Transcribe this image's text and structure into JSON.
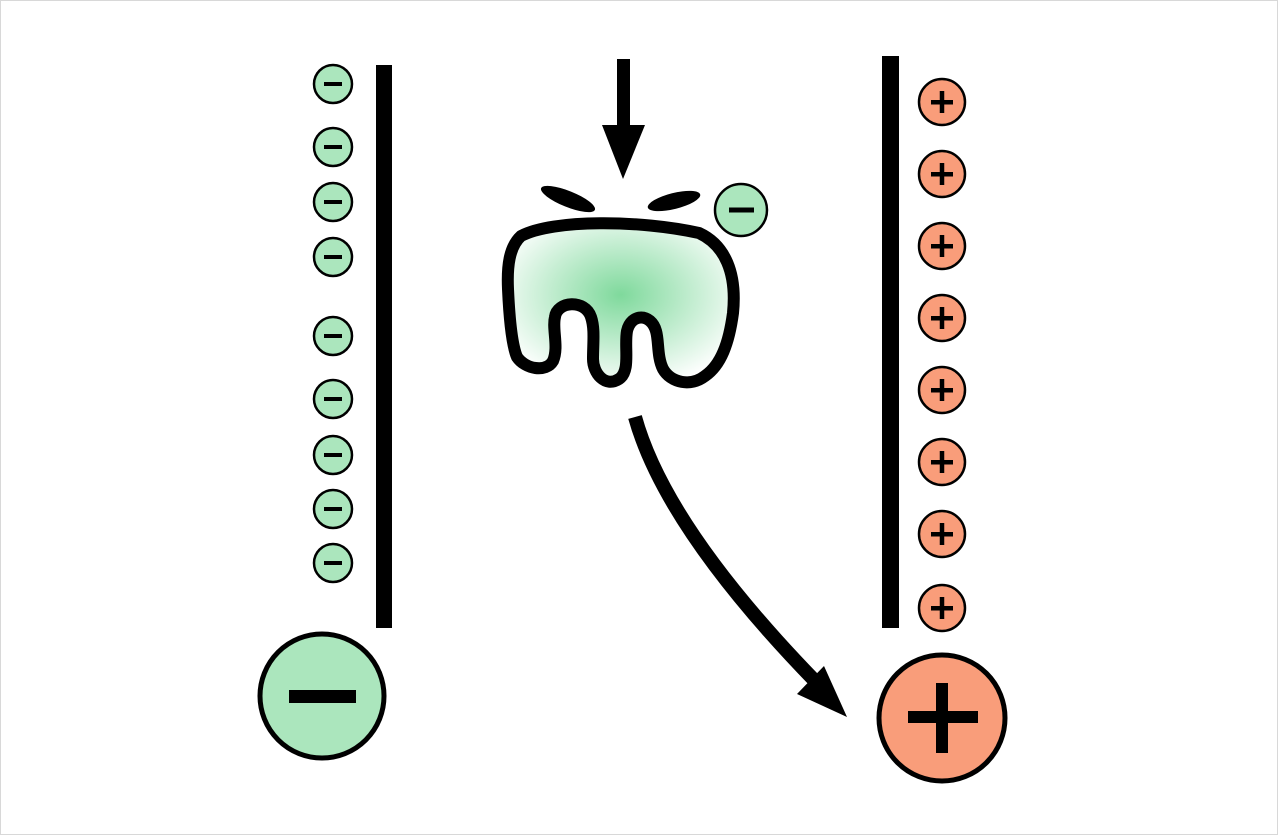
{
  "diagram": {
    "type": "electrophoresis-schematic",
    "colors": {
      "negative_fill": "#abe6bd",
      "positive_fill": "#f99d7a",
      "stroke": "#000000",
      "molecule_gradient_center": "#7fd99c",
      "background": "#ffffff"
    },
    "negative_side": {
      "small_ion_count": 9,
      "symbol": "minus"
    },
    "positive_side": {
      "small_ion_count": 8,
      "symbol": "plus"
    },
    "molecule": {
      "icon": "protein-blob-icon",
      "attached_charge": "minus"
    },
    "arrows": {
      "incoming": "down-arrow-icon",
      "migration": "curved-arrow-to-anode-icon"
    }
  }
}
